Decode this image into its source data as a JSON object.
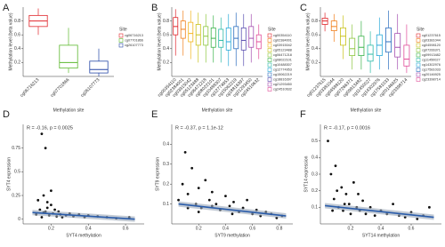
{
  "chart_data": [
    {
      "type": "box",
      "label": "A",
      "ylabel": "Methylation level (beta value)",
      "xlabel": "Methylation site",
      "legend_title": "Site",
      "ylim": [
        0,
        1
      ],
      "yticks": [
        0.2,
        0.4,
        0.6,
        0.8
      ],
      "boxes": [
        {
          "name": "cg06716213",
          "color": "#e0262b",
          "values": [
            0.6,
            0.72,
            0.8,
            0.88,
            0.98
          ]
        },
        {
          "name": "cg07701866",
          "color": "#5cb82e",
          "values": [
            0.05,
            0.12,
            0.2,
            0.45,
            0.7
          ]
        },
        {
          "name": "cg26107773",
          "color": "#2547a6",
          "values": [
            0.0,
            0.05,
            0.1,
            0.22,
            0.4
          ]
        }
      ]
    },
    {
      "type": "box",
      "label": "B",
      "ylabel": "Methylation level (beta value)",
      "xlabel": "Methylation site",
      "legend_title": "Site",
      "ylim": [
        0,
        1
      ],
      "yticks": [
        0.2,
        0.4,
        0.6,
        0.8
      ],
      "boxes": [
        {
          "name": "cg00354110",
          "color": "#e0262b",
          "values": [
            0.3,
            0.6,
            0.72,
            0.85,
            0.97
          ]
        },
        {
          "name": "cg02384001",
          "color": "#f07f1b",
          "values": [
            0.3,
            0.55,
            0.68,
            0.8,
            0.95
          ]
        },
        {
          "name": "cg03915042",
          "color": "#f2b41c",
          "values": [
            0.25,
            0.5,
            0.62,
            0.78,
            0.95
          ]
        },
        {
          "name": "cg05123488",
          "color": "#c9c21a",
          "values": [
            0.2,
            0.45,
            0.6,
            0.75,
            0.92
          ]
        },
        {
          "name": "cg06471218",
          "color": "#8cc63e",
          "values": [
            0.2,
            0.45,
            0.58,
            0.72,
            0.9
          ]
        },
        {
          "name": "cg08022101",
          "color": "#3bb34a",
          "values": [
            0.2,
            0.42,
            0.55,
            0.7,
            0.88
          ]
        },
        {
          "name": "cg10488307",
          "color": "#2bb9a6",
          "values": [
            0.2,
            0.42,
            0.52,
            0.68,
            0.85
          ]
        },
        {
          "name": "cg12774953",
          "color": "#29a9d8",
          "values": [
            0.15,
            0.38,
            0.5,
            0.7,
            0.9
          ]
        },
        {
          "name": "cg15062219",
          "color": "#2d6fbf",
          "values": [
            0.15,
            0.4,
            0.55,
            0.72,
            0.92
          ]
        },
        {
          "name": "cg18816397",
          "color": "#5a4fb0",
          "values": [
            0.15,
            0.38,
            0.52,
            0.7,
            0.9
          ]
        },
        {
          "name": "cg21293450",
          "color": "#a54fb0",
          "values": [
            0.2,
            0.42,
            0.55,
            0.72,
            0.9
          ]
        },
        {
          "name": "cg24510632",
          "color": "#e04d9a",
          "values": [
            0.25,
            0.4,
            0.5,
            0.6,
            0.75
          ]
        }
      ]
    },
    {
      "type": "box",
      "label": "C",
      "ylabel": "Methylation level (beta value)",
      "xlabel": "Methylation site",
      "legend_title": "Site",
      "ylim": [
        0,
        1
      ],
      "yticks": [
        0.2,
        0.4,
        0.6,
        0.8
      ],
      "boxes": [
        {
          "name": "cg01237615",
          "color": "#e0262b",
          "values": [
            0.65,
            0.75,
            0.8,
            0.84,
            0.92
          ]
        },
        {
          "name": "cg03381044",
          "color": "#f07f1b",
          "values": [
            0.5,
            0.66,
            0.72,
            0.8,
            0.9
          ]
        },
        {
          "name": "cg04598120",
          "color": "#c9c21a",
          "values": [
            0.25,
            0.45,
            0.58,
            0.7,
            0.88
          ]
        },
        {
          "name": "cg07266371",
          "color": "#8cc63e",
          "values": [
            0.1,
            0.3,
            0.4,
            0.55,
            0.75
          ]
        },
        {
          "name": "cg09913482",
          "color": "#3bb34a",
          "values": [
            0.1,
            0.3,
            0.42,
            0.58,
            0.8
          ]
        },
        {
          "name": "cg11450027",
          "color": "#2bb9a6",
          "values": [
            0.05,
            0.22,
            0.32,
            0.45,
            0.65
          ]
        },
        {
          "name": "cg14302976",
          "color": "#29a9d8",
          "values": [
            0.1,
            0.3,
            0.45,
            0.6,
            0.85
          ]
        },
        {
          "name": "cg17581033",
          "color": "#2d6fbf",
          "values": [
            0.1,
            0.35,
            0.5,
            0.7,
            0.95
          ]
        },
        {
          "name": "cg20146925",
          "color": "#a54fb0",
          "values": [
            0.1,
            0.28,
            0.42,
            0.62,
            0.9
          ]
        },
        {
          "name": "cg23398714",
          "color": "#e04d9a",
          "values": [
            0.05,
            0.15,
            0.25,
            0.45,
            0.75
          ]
        }
      ]
    },
    {
      "type": "scatter",
      "label": "D",
      "annotation": "R = -0.16, p = 0.0025",
      "xlabel": "SYT4 methylation",
      "ylabel": "SYT4 expression",
      "xlim": [
        0.05,
        0.7
      ],
      "ylim": [
        -0.05,
        1
      ],
      "xticks": [
        0.2,
        0.4,
        0.6
      ],
      "yticks": [
        0,
        0.25,
        0.5,
        0.75
      ],
      "x": [
        0.12,
        0.14,
        0.15,
        0.16,
        0.17,
        0.18,
        0.19,
        0.2,
        0.21,
        0.22,
        0.23,
        0.24,
        0.25,
        0.26,
        0.28,
        0.3,
        0.32,
        0.35,
        0.38,
        0.4,
        0.45,
        0.5,
        0.55,
        0.62,
        0.15,
        0.17,
        0.2,
        0.13,
        0.18,
        0.16
      ],
      "y": [
        0.05,
        0.1,
        0.02,
        0.25,
        0.08,
        0.12,
        0.04,
        0.15,
        0.06,
        0.1,
        0.03,
        0.08,
        0.05,
        0.02,
        0.04,
        0.06,
        0.03,
        0.05,
        0.02,
        0.04,
        0.03,
        0.02,
        0.01,
        0.02,
        0.9,
        0.75,
        0.3,
        0.2,
        0.18,
        0.07
      ],
      "fit": {
        "x": [
          0.1,
          0.65
        ],
        "y": [
          0.07,
          0.0
        ]
      }
    },
    {
      "type": "scatter",
      "label": "E",
      "annotation": "R = -0.37, p = 1.1e-12",
      "xlabel": "SYT9 methylation",
      "ylabel": "SYT9 expression",
      "xlim": [
        0,
        0.9
      ],
      "ylim": [
        0,
        0.5
      ],
      "xticks": [
        0.2,
        0.4,
        0.6,
        0.8
      ],
      "yticks": [
        0.1,
        0.2,
        0.3,
        0.4
      ],
      "x": [
        0.05,
        0.08,
        0.1,
        0.12,
        0.15,
        0.18,
        0.2,
        0.22,
        0.25,
        0.28,
        0.3,
        0.33,
        0.36,
        0.4,
        0.43,
        0.46,
        0.5,
        0.53,
        0.56,
        0.6,
        0.63,
        0.66,
        0.7,
        0.74,
        0.78,
        0.82,
        0.12,
        0.2,
        0.3,
        0.45
      ],
      "y": [
        0.12,
        0.2,
        0.36,
        0.15,
        0.28,
        0.1,
        0.18,
        0.08,
        0.22,
        0.12,
        0.16,
        0.1,
        0.07,
        0.14,
        0.09,
        0.11,
        0.06,
        0.08,
        0.12,
        0.05,
        0.07,
        0.04,
        0.06,
        0.05,
        0.03,
        0.04,
        0.08,
        0.06,
        0.09,
        0.05
      ],
      "fit": {
        "x": [
          0.05,
          0.85
        ],
        "y": [
          0.1,
          0.04
        ]
      }
    },
    {
      "type": "scatter",
      "label": "F",
      "annotation": "R = -0.17, p = 0.0016",
      "xlabel": "SYT14 methylation",
      "ylabel": "SYT14 expression",
      "xlim": [
        0,
        0.8
      ],
      "ylim": [
        0,
        0.6
      ],
      "xticks": [
        0.2,
        0.4,
        0.6
      ],
      "yticks": [
        0.1,
        0.2,
        0.3,
        0.4,
        0.5
      ],
      "x": [
        0.05,
        0.07,
        0.09,
        0.1,
        0.12,
        0.14,
        0.15,
        0.17,
        0.19,
        0.2,
        0.22,
        0.24,
        0.26,
        0.28,
        0.3,
        0.33,
        0.36,
        0.4,
        0.44,
        0.48,
        0.52,
        0.56,
        0.6,
        0.64,
        0.68,
        0.72,
        0.08,
        0.11,
        0.16,
        0.25
      ],
      "y": [
        0.5,
        0.3,
        0.15,
        0.35,
        0.1,
        0.22,
        0.08,
        0.18,
        0.12,
        0.06,
        0.25,
        0.1,
        0.08,
        0.14,
        0.06,
        0.1,
        0.05,
        0.08,
        0.06,
        0.12,
        0.05,
        0.04,
        0.07,
        0.03,
        0.05,
        0.1,
        0.08,
        0.2,
        0.12,
        0.18
      ],
      "fit": {
        "x": [
          0.03,
          0.75
        ],
        "y": [
          0.11,
          0.04
        ]
      }
    }
  ]
}
